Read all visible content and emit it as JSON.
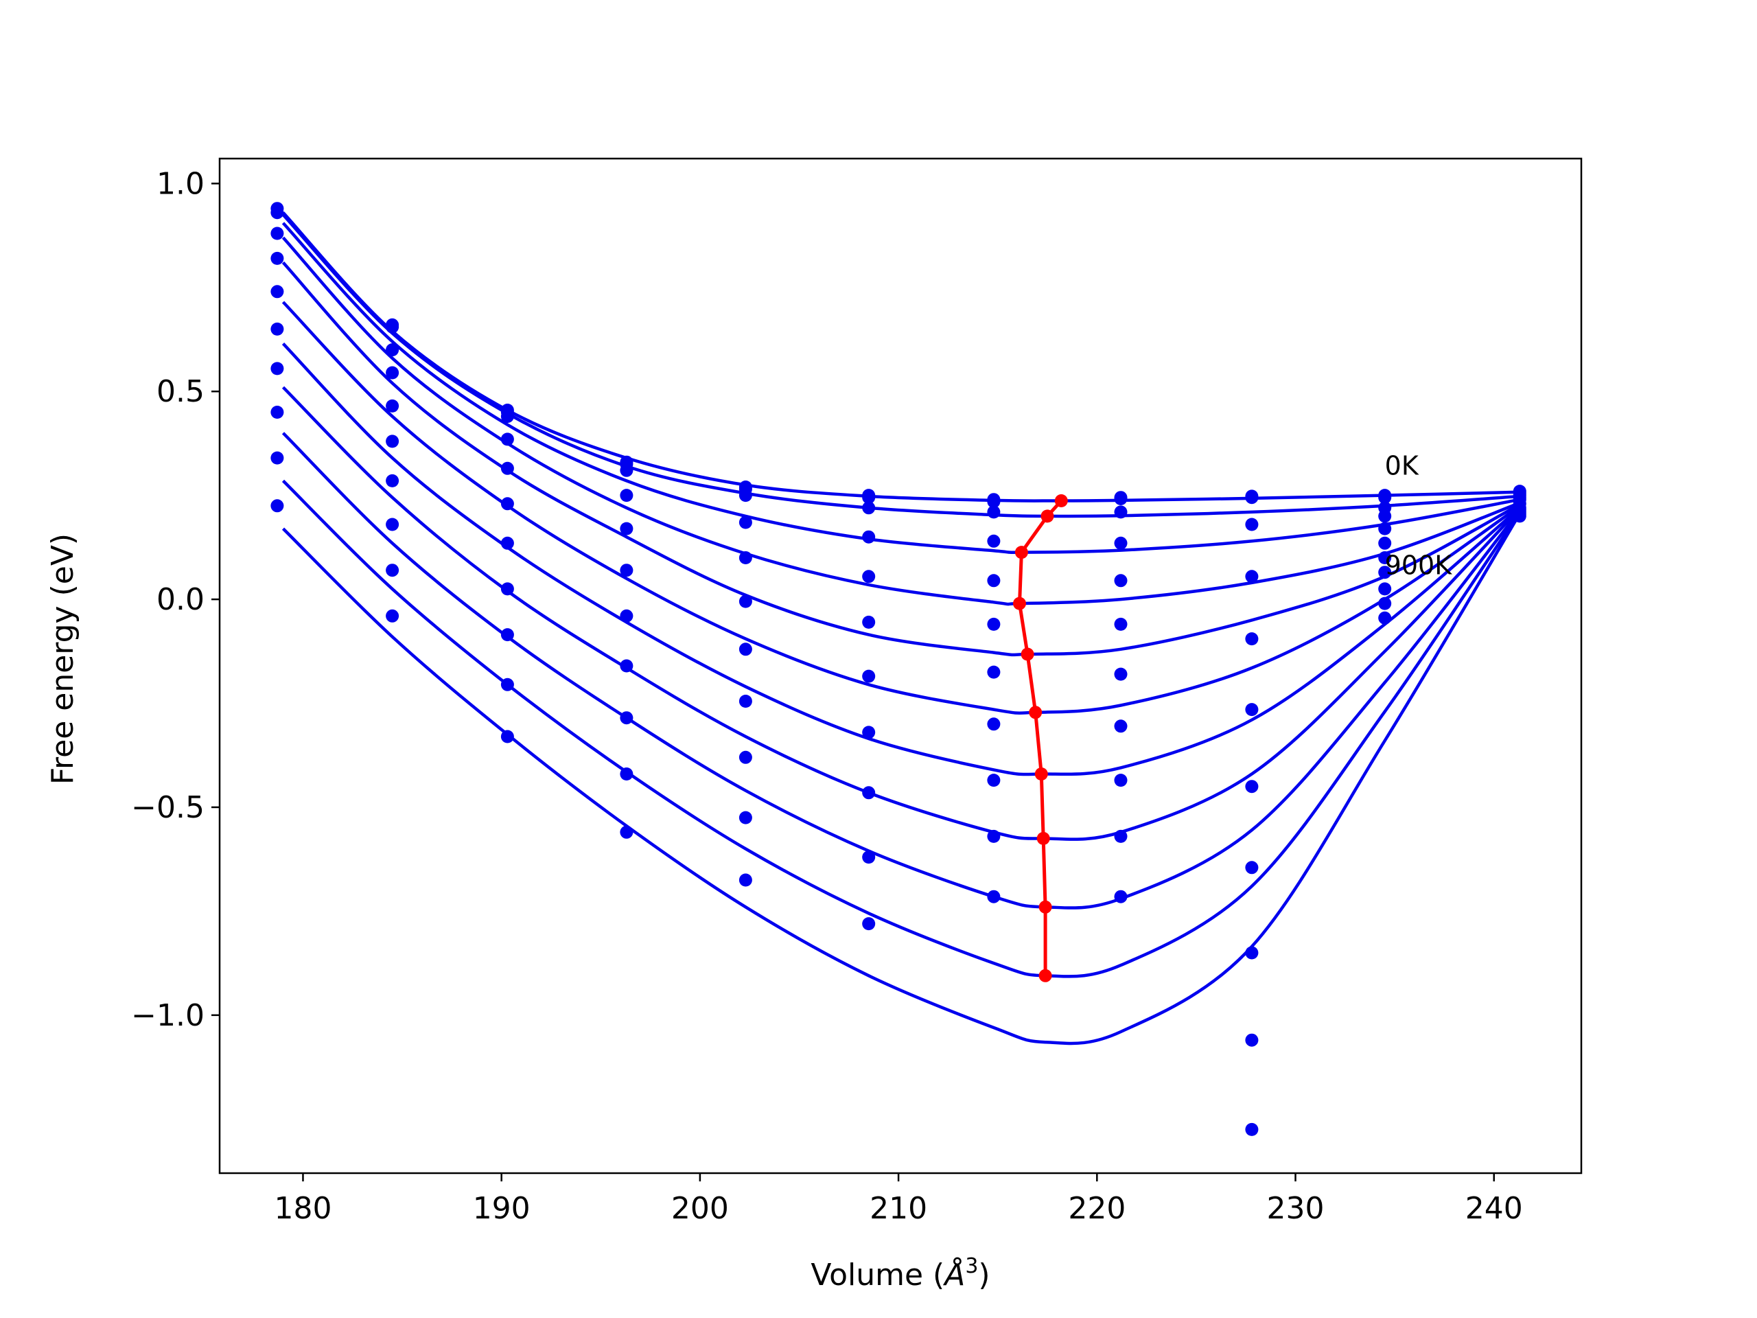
{
  "chart_data": {
    "type": "line",
    "title": "",
    "xlabel": "Volume (",
    "xlabel_symbol": "Å",
    "xlabel_exp": "3",
    "xlabel_close": ")",
    "ylabel": "Free energy (eV)",
    "xlim": [
      175.8,
      244.4
    ],
    "ylim": [
      -1.38,
      1.06
    ],
    "xticks": [
      180,
      190,
      200,
      210,
      220,
      230,
      240
    ],
    "yticks": [
      1.0,
      0.5,
      0.0,
      -0.5,
      -1.0
    ],
    "ytick_labels": [
      "1.0",
      "0.5",
      "0.0",
      "−0.5",
      "−1.0"
    ],
    "grid": false,
    "annotations": [
      {
        "text": "0K",
        "x": 234.5,
        "y": 0.3
      },
      {
        "text": "900K",
        "x": 234.5,
        "y": 0.06
      }
    ],
    "colors": {
      "points": "#0000ee",
      "curves": "#0000ee",
      "minimum": "#ff0000"
    },
    "x_volumes": [
      178.7,
      184.5,
      190.3,
      196.3,
      202.3,
      208.5,
      214.8,
      221.2,
      227.8,
      234.5,
      241.3
    ],
    "point_series": [
      {
        "values": [
          0.94,
          0.66,
          0.455,
          0.33,
          0.27,
          0.25,
          0.24,
          0.245,
          0.248,
          0.25,
          0.26
        ]
      },
      {
        "values": [
          0.93,
          0.655,
          0.45,
          0.325,
          0.265,
          0.245,
          0.235,
          0.242,
          0.245,
          0.245,
          0.255
        ]
      },
      {
        "values": [
          0.88,
          0.6,
          0.44,
          0.31,
          0.25,
          0.22,
          0.21,
          0.21,
          0.18,
          0.22,
          0.25
        ]
      },
      {
        "values": [
          0.82,
          0.545,
          0.385,
          0.25,
          0.185,
          0.15,
          0.14,
          0.135,
          0.055,
          0.2,
          0.245
        ]
      },
      {
        "values": [
          0.74,
          0.465,
          0.315,
          0.17,
          0.1,
          0.055,
          0.045,
          0.045,
          -0.095,
          0.17,
          0.24
        ]
      },
      {
        "values": [
          0.65,
          0.38,
          0.23,
          0.07,
          -0.005,
          -0.055,
          -0.06,
          -0.06,
          -0.265,
          0.135,
          0.23
        ]
      },
      {
        "values": [
          0.555,
          0.285,
          0.135,
          -0.04,
          -0.12,
          -0.185,
          -0.175,
          -0.18,
          -0.45,
          0.1,
          0.22
        ]
      },
      {
        "values": [
          0.45,
          0.18,
          0.025,
          -0.16,
          -0.245,
          -0.32,
          -0.3,
          -0.305,
          -0.645,
          0.065,
          0.215
        ]
      },
      {
        "values": [
          0.34,
          0.07,
          -0.085,
          -0.285,
          -0.38,
          -0.465,
          -0.435,
          -0.435,
          -0.85,
          0.025,
          0.21
        ]
      },
      {
        "values": [
          0.225,
          -0.04,
          -0.205,
          -0.42,
          -0.525,
          -0.62,
          -0.57,
          -0.57,
          -1.06,
          -0.01,
          0.205
        ]
      },
      {
        "values": [
          null,
          null,
          -0.33,
          -0.56,
          -0.675,
          -0.78,
          -0.715,
          -0.715,
          -1.275,
          -0.045,
          0.2
        ]
      }
    ],
    "fit_curves": [
      {
        "x": [
          179,
          184.5,
          190.3,
          196.3,
          202.3,
          208.5,
          214.8,
          218,
          221.2,
          227.8,
          234.5,
          241.3
        ],
        "y": [
          0.93,
          0.645,
          0.455,
          0.34,
          0.275,
          0.248,
          0.238,
          0.237,
          0.238,
          0.243,
          0.25,
          0.258
        ]
      },
      {
        "x": [
          179,
          184.5,
          190.3,
          196.3,
          202.3,
          208.5,
          214.8,
          217.5,
          221.2,
          227.8,
          234.5,
          241.3
        ],
        "y": [
          0.925,
          0.64,
          0.447,
          0.32,
          0.255,
          0.22,
          0.203,
          0.2,
          0.201,
          0.21,
          0.225,
          0.248
        ]
      },
      {
        "x": [
          179,
          184.5,
          190.3,
          196.3,
          202.3,
          208.5,
          214.8,
          216.2,
          221.2,
          227.8,
          234.5,
          241.3
        ],
        "y": [
          0.905,
          0.62,
          0.42,
          0.285,
          0.2,
          0.145,
          0.117,
          0.113,
          0.118,
          0.14,
          0.18,
          0.24
        ]
      },
      {
        "x": [
          179,
          184.5,
          190.3,
          196.3,
          202.3,
          208.5,
          214.8,
          216.1,
          221.2,
          227.8,
          234.5,
          241.3
        ],
        "y": [
          0.87,
          0.58,
          0.375,
          0.22,
          0.11,
          0.035,
          -0.007,
          -0.01,
          0.0,
          0.04,
          0.11,
          0.232
        ]
      },
      {
        "x": [
          179,
          184.5,
          190.3,
          196.3,
          202.3,
          208.5,
          214.8,
          216.5,
          221.2,
          227.8,
          234.5,
          241.3
        ],
        "y": [
          0.81,
          0.52,
          0.31,
          0.15,
          0.01,
          -0.085,
          -0.128,
          -0.132,
          -0.12,
          -0.05,
          0.055,
          0.228
        ]
      },
      {
        "x": [
          179,
          184.5,
          190.3,
          196.3,
          202.3,
          208.5,
          214.8,
          216.9,
          221.2,
          227.8,
          234.5,
          241.3
        ],
        "y": [
          0.715,
          0.44,
          0.225,
          0.05,
          -0.095,
          -0.205,
          -0.265,
          -0.272,
          -0.255,
          -0.165,
          0.0,
          0.224
        ]
      },
      {
        "x": [
          179,
          184.5,
          190.3,
          196.3,
          202.3,
          208.5,
          214.8,
          217.2,
          221.2,
          227.8,
          234.5,
          241.3
        ],
        "y": [
          0.615,
          0.34,
          0.125,
          -0.055,
          -0.21,
          -0.335,
          -0.41,
          -0.42,
          -0.405,
          -0.29,
          -0.06,
          0.22
        ]
      },
      {
        "x": [
          179,
          184.5,
          190.3,
          196.3,
          202.3,
          208.5,
          214.8,
          217.3,
          221.2,
          227.8,
          234.5,
          241.3
        ],
        "y": [
          0.51,
          0.245,
          0.02,
          -0.165,
          -0.33,
          -0.465,
          -0.56,
          -0.575,
          -0.56,
          -0.42,
          -0.125,
          0.218
        ]
      },
      {
        "x": [
          179,
          184.5,
          190.3,
          196.3,
          202.3,
          208.5,
          214.8,
          217.4,
          221.2,
          227.8,
          234.5,
          241.3
        ],
        "y": [
          0.4,
          0.135,
          -0.09,
          -0.285,
          -0.46,
          -0.605,
          -0.715,
          -0.74,
          -0.72,
          -0.555,
          -0.2,
          0.214
        ]
      },
      {
        "x": [
          179,
          184.5,
          190.3,
          196.3,
          202.3,
          208.5,
          214.8,
          217.4,
          221.2,
          227.8,
          234.5,
          241.3
        ],
        "y": [
          0.285,
          0.025,
          -0.205,
          -0.415,
          -0.6,
          -0.755,
          -0.875,
          -0.905,
          -0.88,
          -0.69,
          -0.27,
          0.21
        ]
      },
      {
        "x": [
          179,
          184.5,
          190.3,
          196.3,
          202.3,
          208.5,
          214.8,
          217.4,
          221.2,
          227.8,
          234.5,
          241.3
        ],
        "y": [
          0.17,
          -0.09,
          -0.325,
          -0.545,
          -0.74,
          -0.905,
          -1.03,
          -1.065,
          -1.04,
          -0.835,
          -0.34,
          0.206
        ]
      }
    ],
    "minimum_path": {
      "x": [
        218.2,
        217.5,
        216.2,
        216.1,
        216.5,
        216.9,
        217.2,
        217.3,
        217.4,
        217.4
      ],
      "y": [
        0.237,
        0.2,
        0.113,
        -0.01,
        -0.132,
        -0.272,
        -0.42,
        -0.575,
        -0.74,
        -0.905
      ]
    }
  }
}
